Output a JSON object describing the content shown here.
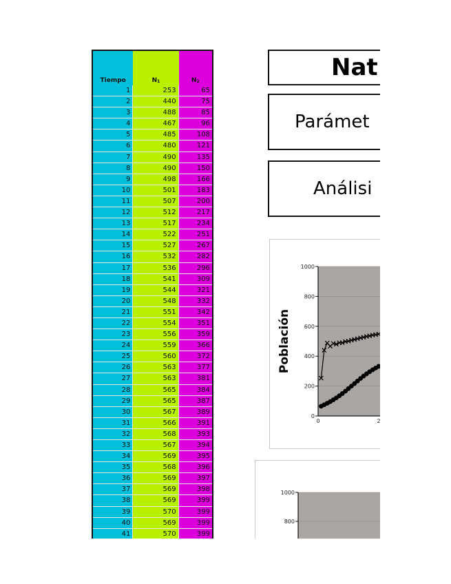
{
  "table": {
    "headers": {
      "tiempo": "Tiempo",
      "n1": "N",
      "n1_sub": "1",
      "n2": "N",
      "n2_sub": "2"
    },
    "rows": [
      {
        "t": "1",
        "n1": "253",
        "n2": "65"
      },
      {
        "t": "2",
        "n1": "440",
        "n2": "75"
      },
      {
        "t": "3",
        "n1": "488",
        "n2": "85"
      },
      {
        "t": "4",
        "n1": "467",
        "n2": "96"
      },
      {
        "t": "5",
        "n1": "485",
        "n2": "108"
      },
      {
        "t": "6",
        "n1": "480",
        "n2": "121"
      },
      {
        "t": "7",
        "n1": "490",
        "n2": "135"
      },
      {
        "t": "8",
        "n1": "490",
        "n2": "150"
      },
      {
        "t": "9",
        "n1": "498",
        "n2": "166"
      },
      {
        "t": "10",
        "n1": "501",
        "n2": "183"
      },
      {
        "t": "11",
        "n1": "507",
        "n2": "200"
      },
      {
        "t": "12",
        "n1": "512",
        "n2": "217"
      },
      {
        "t": "13",
        "n1": "517",
        "n2": "234"
      },
      {
        "t": "14",
        "n1": "522",
        "n2": "251"
      },
      {
        "t": "15",
        "n1": "527",
        "n2": "267"
      },
      {
        "t": "16",
        "n1": "532",
        "n2": "282"
      },
      {
        "t": "17",
        "n1": "536",
        "n2": "296"
      },
      {
        "t": "18",
        "n1": "541",
        "n2": "309"
      },
      {
        "t": "19",
        "n1": "544",
        "n2": "321"
      },
      {
        "t": "20",
        "n1": "548",
        "n2": "332"
      },
      {
        "t": "21",
        "n1": "551",
        "n2": "342"
      },
      {
        "t": "22",
        "n1": "554",
        "n2": "351"
      },
      {
        "t": "23",
        "n1": "556",
        "n2": "359"
      },
      {
        "t": "24",
        "n1": "559",
        "n2": "366"
      },
      {
        "t": "25",
        "n1": "560",
        "n2": "372"
      },
      {
        "t": "26",
        "n1": "563",
        "n2": "377"
      },
      {
        "t": "27",
        "n1": "563",
        "n2": "381"
      },
      {
        "t": "28",
        "n1": "565",
        "n2": "384"
      },
      {
        "t": "29",
        "n1": "565",
        "n2": "387"
      },
      {
        "t": "30",
        "n1": "567",
        "n2": "389"
      },
      {
        "t": "31",
        "n1": "566",
        "n2": "391"
      },
      {
        "t": "32",
        "n1": "568",
        "n2": "393"
      },
      {
        "t": "33",
        "n1": "567",
        "n2": "394"
      },
      {
        "t": "34",
        "n1": "569",
        "n2": "395"
      },
      {
        "t": "35",
        "n1": "568",
        "n2": "396"
      },
      {
        "t": "36",
        "n1": "569",
        "n2": "397"
      },
      {
        "t": "37",
        "n1": "569",
        "n2": "398"
      },
      {
        "t": "38",
        "n1": "569",
        "n2": "399"
      },
      {
        "t": "39",
        "n1": "570",
        "n2": "399"
      },
      {
        "t": "40",
        "n1": "569",
        "n2": "399"
      },
      {
        "t": "41",
        "n1": "570",
        "n2": "399"
      }
    ]
  },
  "title_box": {
    "text": "Nat"
  },
  "params_box": {
    "text": "Parámet"
  },
  "analysis_box": {
    "text": "Análisi"
  },
  "colors": {
    "tiempo": "#00c0dc",
    "n1": "#b8f000",
    "n2": "#dc00dc",
    "plot_bg": "#aaa6a4"
  },
  "chart_data": [
    {
      "type": "line",
      "ylabel": "Población",
      "ylim": [
        0,
        1000
      ],
      "yticks": [
        "0",
        "200",
        "400",
        "600",
        "800",
        "1000"
      ],
      "xticks": [
        "0",
        "2"
      ],
      "series": [
        {
          "name": "N1",
          "marker": "x",
          "x": [
            0.1,
            0.2,
            0.3,
            0.4,
            0.5,
            0.6,
            0.7,
            0.8,
            0.9,
            1.0,
            1.1,
            1.2,
            1.3,
            1.4,
            1.5,
            1.6,
            1.7,
            1.8,
            1.9,
            2.0
          ],
          "values": [
            253,
            440,
            488,
            467,
            485,
            480,
            490,
            490,
            498,
            501,
            507,
            512,
            517,
            522,
            527,
            532,
            536,
            541,
            544,
            548
          ]
        },
        {
          "name": "N2",
          "marker": "dot",
          "x": [
            0.1,
            0.2,
            0.3,
            0.4,
            0.5,
            0.6,
            0.7,
            0.8,
            0.9,
            1.0,
            1.1,
            1.2,
            1.3,
            1.4,
            1.5,
            1.6,
            1.7,
            1.8,
            1.9,
            2.0
          ],
          "values": [
            65,
            75,
            85,
            96,
            108,
            121,
            135,
            150,
            166,
            183,
            200,
            217,
            234,
            251,
            267,
            282,
            296,
            309,
            321,
            332
          ]
        }
      ]
    },
    {
      "type": "line",
      "ylim": [
        0,
        1000
      ],
      "yticks": [
        "1000",
        "800"
      ]
    }
  ]
}
